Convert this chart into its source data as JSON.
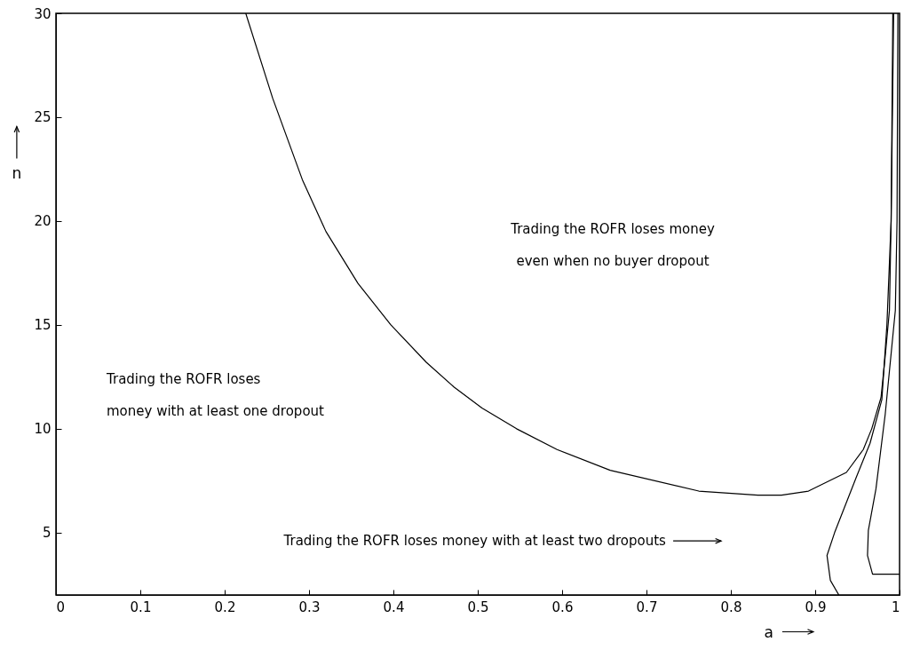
{
  "chart_data": {
    "type": "line",
    "xlabel": "a",
    "ylabel": "n",
    "xlim": [
      0,
      1
    ],
    "ylim": [
      2,
      30
    ],
    "xticks": [
      0,
      0.1,
      0.2,
      0.3,
      0.4,
      0.5,
      0.6,
      0.7,
      0.8,
      0.9,
      1
    ],
    "yticks": [
      5,
      10,
      15,
      20,
      25,
      30
    ],
    "series": [
      {
        "color": "#000000",
        "x": [
          0.225,
          0.257,
          0.292,
          0.32,
          0.358,
          0.397,
          0.439,
          0.472,
          0.505,
          0.546,
          0.594,
          0.657,
          0.762,
          0.832,
          0.86,
          0.892,
          0.937,
          0.957,
          0.967,
          0.978,
          0.983,
          0.988,
          0.99,
          0.992
        ],
        "values": [
          30,
          25.9,
          22,
          19.5,
          17,
          15,
          13.2,
          12,
          11,
          10,
          9,
          8,
          7,
          6.8,
          6.8,
          7,
          7.9,
          9,
          10,
          11.5,
          13.5,
          15.7,
          20,
          30
        ]
      },
      {
        "color": "#000000",
        "x": [
          0.993,
          0.99,
          0.985,
          0.979,
          0.965,
          0.949,
          0.923,
          0.914,
          0.918,
          0.928
        ],
        "values": [
          30,
          20,
          15,
          11.4,
          9.3,
          7.7,
          5,
          3.9,
          2.7,
          2
        ]
      },
      {
        "color": "#000000",
        "x": [
          0.998,
          0.997,
          0.995,
          0.983,
          0.972,
          0.963,
          0.962,
          0.968,
          0.997,
          1
        ],
        "values": [
          30,
          20,
          15.7,
          10.7,
          7.1,
          5.1,
          3.9,
          3,
          3,
          3
        ]
      }
    ],
    "annotations": [
      "Trading the ROFR loses\nmoney with at least one dropout",
      "Trading the ROFR loses money\neven when no buyer dropout",
      "Trading the ROFR loses money with at least two dropouts"
    ]
  }
}
